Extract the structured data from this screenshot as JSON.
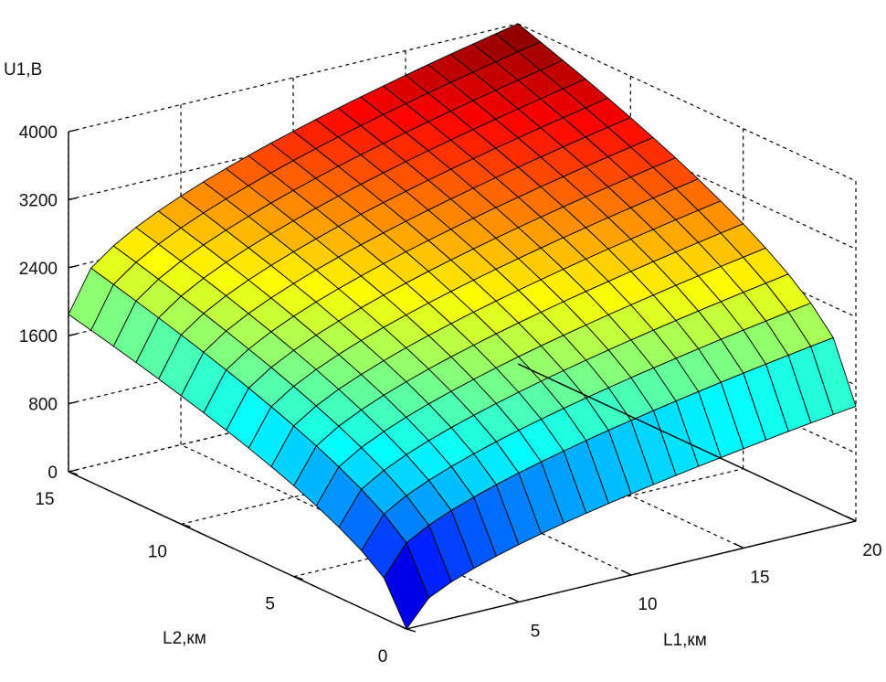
{
  "chart_data": {
    "type": "surface3d",
    "colormap": "jet",
    "zlabel": "U1,B",
    "xlabel": "L1,км",
    "ylabel": "L2,км",
    "x_ticks": [
      "5",
      "10",
      "15",
      "20"
    ],
    "y_ticks": [
      "0",
      "5",
      "10",
      "15"
    ],
    "z_ticks": [
      "0",
      "800",
      "1600",
      "2400",
      "3200",
      "4000"
    ],
    "x_range": [
      0,
      20
    ],
    "y_range": [
      0,
      15
    ],
    "z_range": [
      0,
      4000
    ],
    "grid": true,
    "mesh_x": 20,
    "mesh_y": 15,
    "corner_values": {
      "L1_0_L2_0": 0,
      "L1_20_L2_0": 1350,
      "L1_0_L2_15": 1850,
      "L1_20_L2_15": 4000
    }
  }
}
